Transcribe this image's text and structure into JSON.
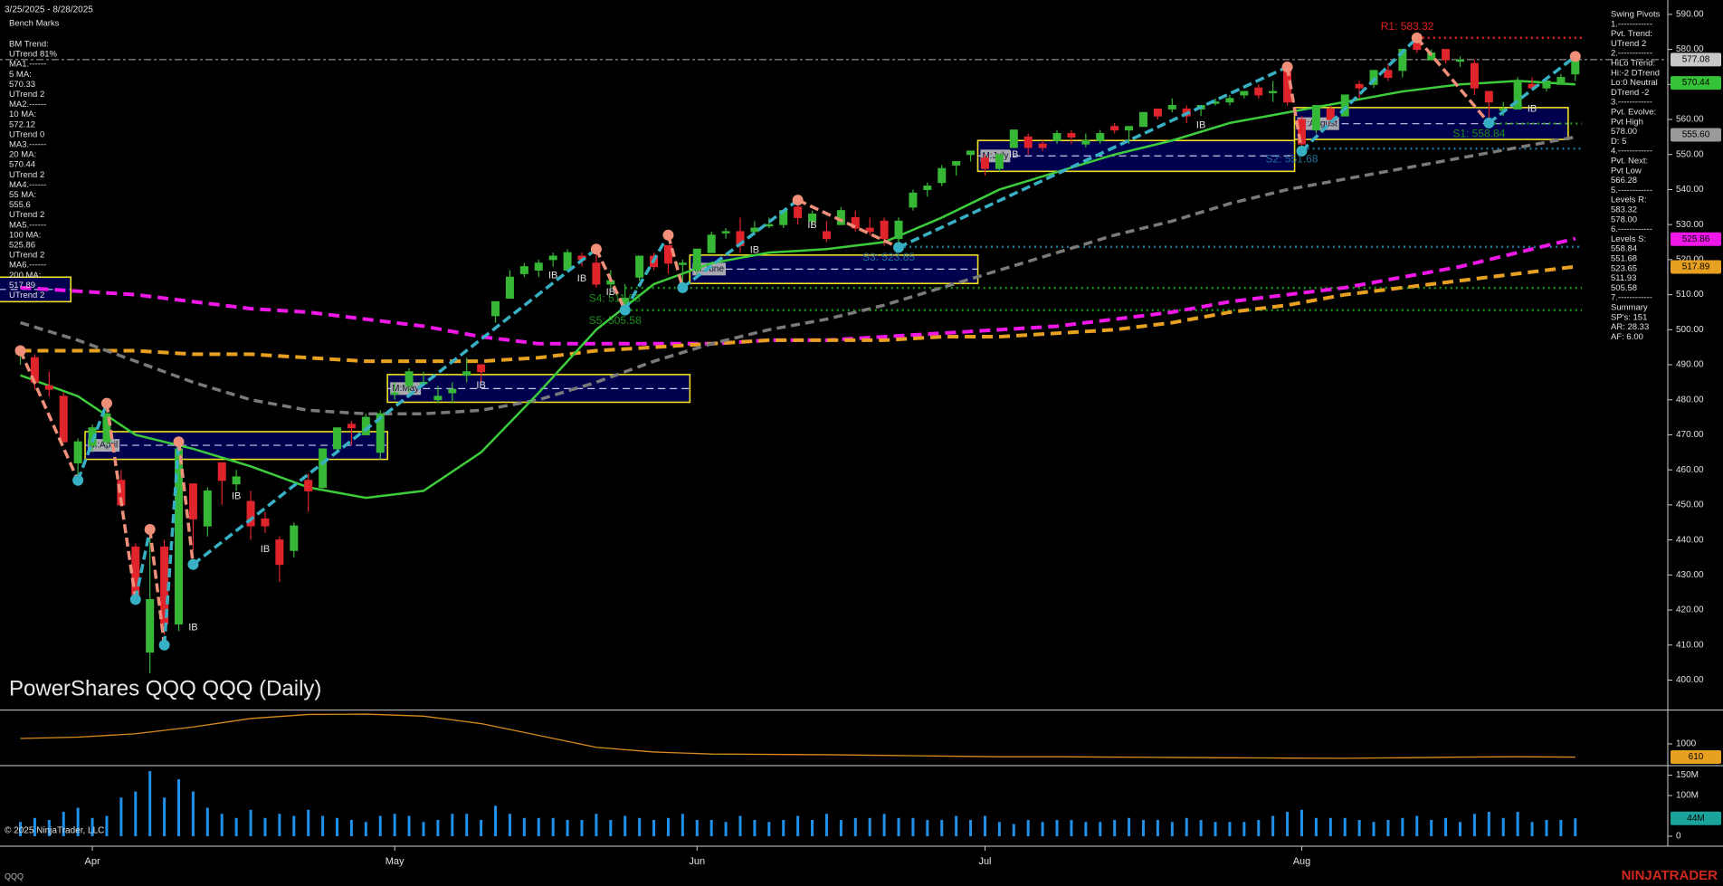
{
  "header": {
    "date_range": "3/25/2025 - 8/28/2025",
    "instrument": "QQQ"
  },
  "left_panel": {
    "title": "Bench Marks",
    "lines": [
      "BM Trend:",
      "UTrend 81%",
      "MA1.------",
      "5 MA:",
      "570.33",
      "UTrend 2",
      "MA2.------",
      "10 MA:",
      "572.12",
      "UTrend 0",
      "MA3.------",
      "20 MA:",
      "570.44",
      "UTrend 2",
      "MA4.------",
      "55 MA:",
      "555.6",
      "UTrend 2",
      "MA5.------",
      "100 MA:",
      "525.86",
      "UTrend 2",
      "MA6.------",
      "200 MA:",
      "517.89",
      "UTrend 2"
    ]
  },
  "right_panel": {
    "lines": [
      "Swing Pivots",
      "1.------------",
      "Pvt. Trend:",
      "UTrend 2",
      "2.------------",
      "HiLo Trend:",
      "Hi:-2 DTrend",
      "Lo:0 Neutral",
      "DTrend -2",
      "3.------------",
      "Pvt. Evolve:",
      "Pvt High",
      "578.00",
      "D: 5",
      "4.------------",
      "Pvt. Next:",
      "Pvt Low",
      "566.28",
      "5.------------",
      "Levels R:",
      "583.32",
      "578.00",
      "6.------------",
      "Levels S:",
      "558.84",
      "551.68",
      "523.65",
      "511.93",
      "505.58",
      "7.------------",
      "Summary",
      "SP's: 151",
      "AR: 28.33",
      "AF: 6.00"
    ]
  },
  "footer": {
    "copyright": "© 2025 NinjaTrader, LLC",
    "brand": "NINJATRADER"
  },
  "chart_data": {
    "type": "candlestick",
    "title": "PowerShares QQQ QQQ (Daily)",
    "categories": [
      null,
      null,
      null,
      null,
      null,
      "Apr",
      null,
      null,
      null,
      null,
      null,
      null,
      null,
      null,
      null,
      null,
      null,
      null,
      null,
      null,
      null,
      null,
      null,
      null,
      null,
      null,
      "May",
      null,
      null,
      null,
      null,
      null,
      null,
      null,
      null,
      null,
      null,
      null,
      null,
      null,
      null,
      null,
      null,
      null,
      null,
      null,
      null,
      "Jun",
      null,
      null,
      null,
      null,
      null,
      null,
      null,
      null,
      null,
      null,
      null,
      null,
      null,
      null,
      null,
      null,
      null,
      null,
      null,
      "Jul",
      null,
      null,
      null,
      null,
      null,
      null,
      null,
      null,
      null,
      null,
      null,
      null,
      null,
      null,
      null,
      null,
      null,
      null,
      null,
      null,
      null,
      "Aug",
      null,
      null,
      null,
      null,
      null,
      null,
      null,
      null,
      null,
      null,
      null,
      null,
      null,
      null,
      null,
      null,
      null,
      null,
      null
    ],
    "open": [
      493,
      492,
      484,
      481,
      462,
      467,
      468,
      457,
      438,
      408,
      438,
      416,
      456,
      444,
      462,
      456,
      451,
      446,
      440,
      437,
      457,
      455,
      466,
      473,
      470,
      465,
      482,
      484,
      485,
      480,
      482,
      487,
      490,
      504,
      509,
      516,
      517,
      520,
      517,
      521,
      519,
      513,
      507,
      515,
      521,
      524,
      519,
      517,
      522,
      528,
      528,
      528,
      530,
      530,
      535,
      531,
      528,
      530,
      532,
      529,
      531,
      526,
      535,
      540,
      542,
      547,
      550,
      549,
      546,
      552,
      555,
      553,
      554,
      556,
      553,
      554,
      558,
      557,
      558,
      563,
      563,
      563,
      563,
      565,
      565,
      567,
      569,
      568,
      574,
      560,
      557,
      563,
      561,
      570,
      570,
      574,
      574,
      582,
      577,
      580,
      577,
      576,
      568,
      563,
      563,
      570,
      569,
      570,
      573
    ],
    "high": [
      494,
      493,
      488,
      482,
      469,
      473,
      479,
      460,
      439,
      441,
      440,
      467,
      456,
      455,
      462,
      460,
      454,
      448,
      441,
      445,
      459,
      466,
      472,
      474,
      476,
      477,
      485,
      489,
      488,
      484,
      485,
      492,
      490,
      508,
      517,
      519,
      520,
      522,
      523,
      522,
      524,
      517,
      513,
      521,
      522,
      524,
      520,
      523,
      528,
      529,
      532,
      531,
      532,
      534,
      537,
      534,
      531,
      535,
      534,
      532,
      532,
      532,
      540,
      542,
      547,
      548,
      551,
      550,
      550,
      557,
      556,
      554,
      557,
      557,
      556,
      557,
      559,
      558,
      562,
      563,
      566,
      564,
      564,
      566,
      567,
      568,
      570,
      571,
      575,
      561,
      564,
      564,
      567,
      571,
      574,
      576,
      580,
      583.3,
      580,
      580,
      578,
      577,
      568,
      565,
      572,
      572,
      571,
      573,
      578
    ],
    "low": [
      490,
      483,
      481,
      468,
      458,
      465,
      467,
      450,
      422,
      402,
      413,
      414,
      437,
      441,
      450,
      454,
      440,
      442,
      428,
      435,
      448,
      454,
      465,
      467,
      470,
      463,
      480,
      482,
      484,
      479,
      479,
      485,
      485,
      502,
      509,
      515,
      515,
      518,
      517,
      518,
      512,
      512,
      505,
      514,
      517,
      516,
      513,
      515,
      522,
      526,
      522,
      527,
      529,
      529,
      530,
      530,
      525,
      530,
      528,
      527,
      524,
      523,
      534,
      538,
      541,
      544,
      548,
      544,
      545,
      552,
      550,
      551,
      553,
      553,
      552,
      553,
      556,
      553,
      558,
      560,
      562,
      559,
      561,
      564,
      564,
      566,
      566,
      565,
      564,
      551,
      556,
      559,
      561,
      566,
      569,
      571,
      572,
      579,
      577,
      576,
      575,
      567,
      558,
      561,
      563,
      569,
      568,
      570,
      571
    ],
    "close": [
      494,
      485,
      483,
      468,
      468,
      472,
      476,
      450,
      423,
      423,
      416,
      466,
      446,
      454,
      457,
      458,
      444,
      444,
      433,
      444,
      454,
      466,
      472,
      472,
      475,
      476,
      482,
      488,
      485,
      481,
      483,
      488,
      488,
      508,
      515,
      518,
      519,
      521,
      522,
      520,
      513,
      514,
      509,
      521,
      518,
      519,
      519,
      523,
      527,
      528,
      524,
      529,
      530,
      534,
      532,
      533,
      526,
      534,
      529,
      528,
      526,
      531,
      539,
      541,
      546,
      548,
      551,
      546,
      550,
      557,
      552,
      552,
      556,
      555,
      554,
      556,
      557,
      558,
      562,
      561,
      564,
      561,
      564,
      565,
      566,
      568,
      567,
      568,
      565,
      553,
      564,
      560,
      567,
      569,
      574,
      572,
      580,
      580,
      579,
      577,
      577,
      569,
      565,
      563,
      571,
      569,
      571,
      572,
      577
    ],
    "up_color": "#36b836",
    "down_color": "#e0242c",
    "ylim": [
      391.6,
      594.1
    ],
    "yticks": [
      {
        "value": 400,
        "label": "400.00"
      },
      {
        "value": 410,
        "label": "410.00"
      },
      {
        "value": 420,
        "label": "420.00"
      },
      {
        "value": 430,
        "label": "430.00"
      },
      {
        "value": 440,
        "label": "440.00"
      },
      {
        "value": 450,
        "label": "450.00"
      },
      {
        "value": 460,
        "label": "460.00"
      },
      {
        "value": 470,
        "label": "470.00"
      },
      {
        "value": 480,
        "label": "480.00"
      },
      {
        "value": 490,
        "label": "490.00"
      },
      {
        "value": 500,
        "label": "500.00"
      },
      {
        "value": 510,
        "label": "510.00"
      },
      {
        "value": 520,
        "label": "520.00"
      },
      {
        "value": 530,
        "label": "530.00"
      },
      {
        "value": 540,
        "label": "540.00"
      },
      {
        "value": 550,
        "label": "550.00"
      },
      {
        "value": 560,
        "label": "560.00"
      },
      {
        "value": 570,
        "label": "570.00"
      },
      {
        "value": 580,
        "label": "580.00"
      },
      {
        "value": 590,
        "label": "590.00"
      }
    ],
    "overlays": [
      {
        "color": "#f018e8",
        "dash": "12 7",
        "width": 4,
        "x": [
          0,
          4,
          8,
          12,
          16,
          20,
          24,
          28,
          32,
          36,
          40,
          44,
          48,
          52,
          56,
          60,
          64,
          68,
          72,
          76,
          80,
          84,
          88,
          92,
          96,
          100,
          104,
          108
        ],
        "values": [
          512,
          511,
          510,
          508,
          506,
          505,
          503,
          501,
          498,
          496,
          496,
          496,
          496,
          497,
          497,
          498,
          499,
          500,
          501,
          503,
          505,
          508,
          510,
          512,
          515,
          518,
          522,
          526
        ]
      },
      {
        "color": "#e8a020",
        "dash": "12 7",
        "width": 4,
        "x": [
          0,
          4,
          8,
          12,
          16,
          20,
          24,
          28,
          32,
          36,
          40,
          44,
          48,
          52,
          56,
          60,
          64,
          68,
          72,
          76,
          80,
          84,
          88,
          92,
          96,
          100,
          104,
          108
        ],
        "values": [
          494,
          494,
          494,
          493,
          493,
          492,
          491,
          491,
          491,
          492,
          494,
          495,
          496,
          497,
          497,
          497,
          498,
          498,
          499,
          500,
          502,
          505,
          507,
          510,
          512,
          514,
          516,
          518
        ]
      },
      {
        "color": "#7a7a7a",
        "dash": "10 6",
        "width": 3.5,
        "x": [
          0,
          4,
          8,
          12,
          16,
          20,
          24,
          28,
          32,
          36,
          40,
          44,
          48,
          52,
          56,
          60,
          64,
          68,
          72,
          76,
          80,
          84,
          88,
          92,
          96,
          100,
          104,
          108
        ],
        "values": [
          502,
          497,
          491,
          485,
          480,
          477,
          476,
          476,
          477,
          480,
          485,
          491,
          496,
          500,
          503,
          507,
          512,
          517,
          522,
          527,
          531,
          536,
          540,
          543,
          546,
          549,
          552,
          555
        ]
      },
      {
        "color": "#3ccc3c",
        "dash": null,
        "width": 2.5,
        "x": [
          0,
          4,
          8,
          12,
          16,
          20,
          24,
          28,
          32,
          36,
          40,
          44,
          48,
          52,
          56,
          60,
          64,
          68,
          72,
          76,
          80,
          84,
          88,
          92,
          96,
          100,
          104,
          108
        ],
        "values": [
          487,
          481,
          470,
          466,
          461,
          455,
          452,
          454,
          465,
          482,
          500,
          513,
          519,
          522,
          523,
          525,
          532,
          540,
          545,
          550,
          554,
          559,
          562,
          565,
          568,
          570,
          571,
          570
        ]
      }
    ],
    "swings": {
      "up_color": "#38b0c4",
      "down_color": "#f0907a",
      "x": [
        0,
        4,
        6,
        8,
        9,
        10,
        11,
        12,
        40,
        42,
        45,
        46,
        54,
        61,
        88,
        89,
        97,
        102,
        108
      ],
      "values": [
        494,
        457,
        479,
        423,
        443,
        410,
        468,
        433,
        523,
        505.6,
        527,
        512,
        537,
        523.5,
        575,
        551,
        583.3,
        559,
        578
      ]
    },
    "levels": [
      {
        "label": "R1: 583.32",
        "value": 583.32,
        "from": 97,
        "color": "#e02020"
      },
      {
        "label": "S1: 558.84",
        "value": 558.84,
        "from": 102,
        "color": "#1a8f1a"
      },
      {
        "label": "S2: 551.68",
        "value": 551.68,
        "from": 89,
        "color": "#1f6f9b"
      },
      {
        "label": "S3: 523.65",
        "value": 523.65,
        "from": 61,
        "color": "#1f6f9b"
      },
      {
        "label": "S4: 511.93",
        "value": 511.93,
        "from": 42,
        "color": "#1a8f1a"
      },
      {
        "label": "S5: 505.58",
        "value": 505.58,
        "from": 42,
        "color": "#1a8f1a"
      }
    ],
    "value_areas": [
      {
        "from": -1,
        "to": 3,
        "top": 515,
        "bottom": 508,
        "mid": 511.5
      },
      {
        "label": "M:April",
        "from": 5,
        "to": 25,
        "top": 470.9,
        "bottom": 463,
        "mid": 467
      },
      {
        "label": "M:May",
        "from": 26,
        "to": 46,
        "top": 487.2,
        "bottom": 479.3,
        "mid": 483.2
      },
      {
        "label": "M:June",
        "from": 47,
        "to": 66,
        "top": 521.3,
        "bottom": 513.2,
        "mid": 517.3
      },
      {
        "label": "M:July",
        "from": 67,
        "to": 88,
        "top": 554,
        "bottom": 545.2,
        "mid": 549.6
      },
      {
        "label": "M:August",
        "from": 89,
        "to": 107,
        "top": 563.4,
        "bottom": 554.3,
        "mid": 558.8
      }
    ],
    "annotations": [
      {
        "text": "IB",
        "x": 15,
        "y": 452.4
      },
      {
        "text": "IB",
        "x": 17,
        "y": 437.3
      },
      {
        "text": "IB",
        "x": 12,
        "y": 415
      },
      {
        "text": "IB",
        "x": 32,
        "y": 484
      },
      {
        "text": "IB",
        "x": 37,
        "y": 515.4
      },
      {
        "text": "IB",
        "x": 39,
        "y": 514.5
      },
      {
        "text": "IB",
        "x": 41,
        "y": 510.7
      },
      {
        "text": "IB",
        "x": 51,
        "y": 522.6
      },
      {
        "text": "IB",
        "x": 55,
        "y": 529.8
      },
      {
        "text": "IB",
        "x": 69,
        "y": 549.9
      },
      {
        "text": "IB",
        "x": 82,
        "y": 558.3
      },
      {
        "text": "IB",
        "x": 105,
        "y": 563
      }
    ],
    "price_tags": [
      {
        "value": 577.08,
        "label": "577.08",
        "color": "#c8c8c8"
      },
      {
        "value": 570.44,
        "label": "570.44",
        "color": "#36c236"
      },
      {
        "value": 555.6,
        "label": "555.60",
        "color": "#9a9a9a"
      },
      {
        "value": 525.86,
        "label": "525.86",
        "color": "#f018e8"
      },
      {
        "value": 517.89,
        "label": "517.89",
        "color": "#e8a020"
      }
    ],
    "indicator": {
      "type": "line",
      "color": "#d88a1e",
      "ylim": [
        400,
        2000
      ],
      "yticks": [
        1000
      ],
      "x": [
        0,
        4,
        8,
        12,
        16,
        20,
        24,
        28,
        32,
        36,
        40,
        44,
        48,
        52,
        56,
        60,
        64,
        68,
        72,
        76,
        80,
        84,
        88,
        92,
        96,
        100,
        104,
        108
      ],
      "values": [
        1160,
        1200,
        1300,
        1500,
        1750,
        1870,
        1880,
        1820,
        1600,
        1250,
        900,
        760,
        700,
        690,
        680,
        660,
        640,
        620,
        620,
        610,
        600,
        590,
        580,
        575,
        590,
        610,
        620,
        610
      ],
      "tag": {
        "value": 610,
        "label": "610",
        "color": "#e8a020"
      }
    },
    "volume": {
      "type": "bar",
      "color": "#2090e8",
      "ylim": [
        0,
        172
      ],
      "yticks": [
        {
          "value": 150,
          "label": "150M"
        },
        {
          "value": 100,
          "label": "100M"
        },
        0
      ],
      "values": [
        35,
        45,
        40,
        60,
        70,
        45,
        50,
        95,
        110,
        160,
        95,
        140,
        110,
        70,
        55,
        45,
        65,
        45,
        55,
        50,
        65,
        50,
        45,
        40,
        35,
        50,
        55,
        50,
        35,
        40,
        55,
        55,
        40,
        75,
        55,
        45,
        45,
        45,
        40,
        40,
        55,
        40,
        50,
        45,
        40,
        45,
        55,
        40,
        40,
        35,
        50,
        40,
        35,
        40,
        50,
        40,
        55,
        40,
        45,
        45,
        55,
        45,
        45,
        40,
        40,
        50,
        40,
        50,
        35,
        30,
        40,
        35,
        40,
        40,
        35,
        35,
        40,
        45,
        40,
        40,
        35,
        45,
        40,
        35,
        35,
        35,
        40,
        50,
        60,
        65,
        45,
        45,
        45,
        40,
        35,
        40,
        45,
        50,
        40,
        45,
        35,
        55,
        60,
        45,
        60,
        35,
        40,
        40,
        44
      ],
      "tag": {
        "value": 44,
        "label": "44M",
        "color": "#1aa39a"
      }
    }
  }
}
